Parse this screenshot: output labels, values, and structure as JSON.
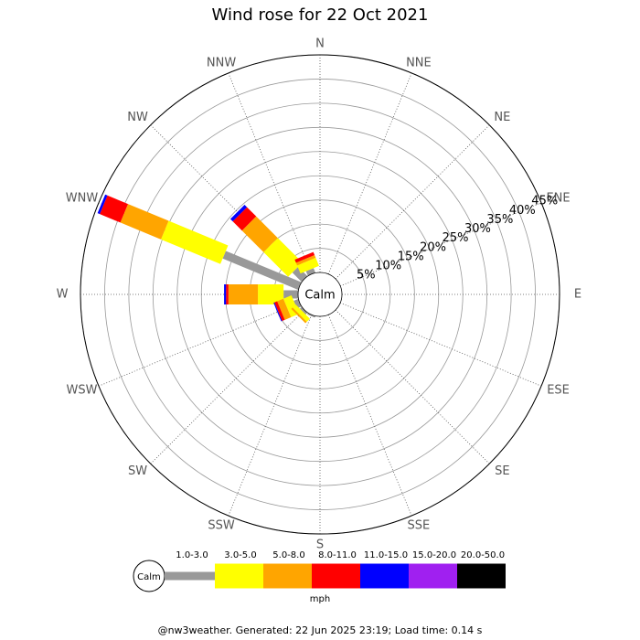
{
  "chart_data": {
    "type": "windrose",
    "title": "Wind rose for 22 Oct 2021",
    "center_label": "Calm",
    "categories": [
      "N",
      "NNE",
      "NE",
      "ENE",
      "E",
      "ESE",
      "SE",
      "SSE",
      "S",
      "SSW",
      "SW",
      "WSW",
      "W",
      "WNW",
      "NW",
      "NNW"
    ],
    "series": [
      {
        "name": "1.0-3.0",
        "color": "#999999",
        "values": [
          0,
          0,
          0,
          0,
          0,
          0,
          0,
          0,
          0,
          0.3,
          0.5,
          1.0,
          3.0,
          16.9,
          2.7,
          1.0
        ]
      },
      {
        "name": "3.0-5.0",
        "color": "#ffff00",
        "values": [
          0,
          0,
          0,
          0,
          0,
          0,
          0,
          0,
          0,
          0,
          0.9,
          1.8,
          5.3,
          13.3,
          7.2,
          1.8
        ]
      },
      {
        "name": "5.0-8.0",
        "color": "#ffa500",
        "values": [
          0,
          0,
          0,
          0,
          0,
          0,
          0,
          0,
          0,
          0,
          0.4,
          1.4,
          6.1,
          9.1,
          6.3,
          0.6
        ]
      },
      {
        "name": "8.0-11.0",
        "color": "#ff0000",
        "values": [
          0,
          0,
          0,
          0,
          0,
          0,
          0,
          0,
          0,
          0,
          0,
          0.6,
          0.5,
          4.6,
          2.7,
          0.7
        ]
      },
      {
        "name": "11.0-15.0",
        "color": "#0000ff",
        "values": [
          0,
          0,
          0,
          0,
          0,
          0,
          0,
          0,
          0,
          0,
          0,
          0.2,
          0.4,
          0.5,
          0.7,
          0
        ]
      },
      {
        "name": "15.0-20.0",
        "color": "#a020f0",
        "values": [
          0,
          0,
          0,
          0,
          0,
          0,
          0,
          0,
          0,
          0,
          0,
          0,
          0,
          0,
          0,
          0
        ]
      },
      {
        "name": "20.0-50.0",
        "color": "#000000",
        "values": [
          0,
          0,
          0,
          0,
          0,
          0,
          0,
          0,
          0,
          0,
          0,
          0,
          0,
          0,
          0,
          0
        ]
      }
    ],
    "rlim": [
      0,
      45
    ],
    "rticks": [
      {
        "value": 5,
        "label": "5%"
      },
      {
        "value": 10,
        "label": "10%"
      },
      {
        "value": 15,
        "label": "15%"
      },
      {
        "value": 20,
        "label": "20%"
      },
      {
        "value": 25,
        "label": "25%"
      },
      {
        "value": 30,
        "label": "30%"
      },
      {
        "value": 35,
        "label": "35%"
      },
      {
        "value": 40,
        "label": "40%"
      },
      {
        "value": 45,
        "label": "45%"
      }
    ],
    "legend_unit": "mph",
    "footer": "@nw3weather. Generated: 22 Jun 2025 23:19; Load time: 0.14 s"
  }
}
